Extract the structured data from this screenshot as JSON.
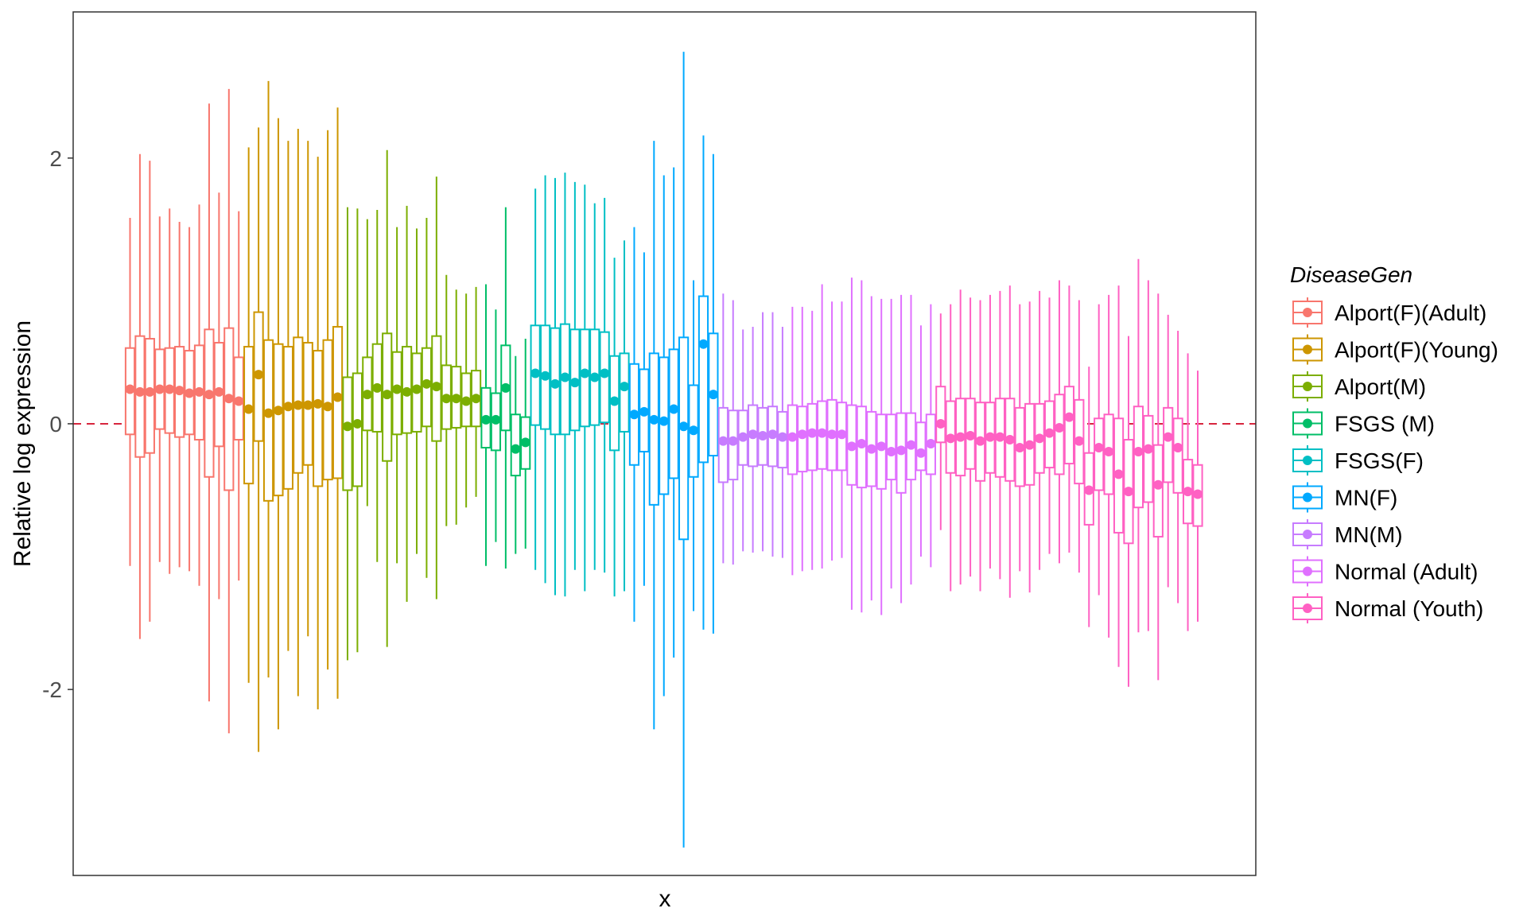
{
  "chart_data": {
    "type": "boxplot",
    "xlabel": "x",
    "ylabel": "Relative log expression",
    "ylim": [
      -3.4,
      3.1
    ],
    "yticks": [
      -2,
      0,
      2
    ],
    "ytick_labels": [
      "-2",
      "0",
      "2"
    ],
    "reference_line": {
      "y": 0,
      "style": "dashed",
      "color": "#d7263d"
    },
    "legend": {
      "title": "DiseaseGen",
      "position": "right"
    },
    "groups": [
      {
        "name": "Alport(F)(Adult)",
        "color": "#F8766D",
        "boxes": [
          [
            -1.07,
            -0.08,
            0.26,
            0.57,
            1.55
          ],
          [
            -1.62,
            -0.25,
            0.24,
            0.66,
            2.03
          ],
          [
            -1.49,
            -0.22,
            0.24,
            0.64,
            1.98
          ],
          [
            -1.04,
            -0.04,
            0.26,
            0.56,
            1.56
          ],
          [
            -1.13,
            -0.07,
            0.26,
            0.57,
            1.62
          ],
          [
            -1.08,
            -0.1,
            0.25,
            0.58,
            1.52
          ],
          [
            -1.11,
            -0.08,
            0.23,
            0.55,
            1.48
          ],
          [
            -1.22,
            -0.12,
            0.24,
            0.59,
            1.65
          ],
          [
            -2.09,
            -0.4,
            0.22,
            0.71,
            2.41
          ],
          [
            -1.32,
            -0.17,
            0.24,
            0.61,
            1.74
          ],
          [
            -2.33,
            -0.5,
            0.19,
            0.72,
            2.52
          ],
          [
            -1.18,
            -0.12,
            0.17,
            0.5,
            1.6
          ]
        ]
      },
      {
        "name": "Alport(F)(Young)",
        "color": "#CD9600",
        "boxes": [
          [
            -1.95,
            -0.45,
            0.11,
            0.58,
            2.08
          ],
          [
            -2.47,
            -0.13,
            0.37,
            0.84,
            2.23
          ],
          [
            -1.91,
            -0.58,
            0.08,
            0.63,
            2.58
          ],
          [
            -2.3,
            -0.54,
            0.1,
            0.6,
            2.3
          ],
          [
            -1.71,
            -0.49,
            0.13,
            0.58,
            2.13
          ],
          [
            -2.05,
            -0.37,
            0.14,
            0.65,
            2.22
          ],
          [
            -1.6,
            -0.31,
            0.14,
            0.61,
            2.13
          ],
          [
            -2.15,
            -0.47,
            0.15,
            0.55,
            2.01
          ],
          [
            -1.85,
            -0.42,
            0.13,
            0.63,
            2.21
          ],
          [
            -2.07,
            -0.41,
            0.2,
            0.73,
            2.38
          ]
        ]
      },
      {
        "name": "Alport(M)",
        "color": "#7CAE00",
        "boxes": [
          [
            -1.78,
            -0.5,
            -0.02,
            0.35,
            1.63
          ],
          [
            -1.72,
            -0.47,
            0.0,
            0.38,
            1.62
          ],
          [
            -0.62,
            -0.05,
            0.22,
            0.5,
            1.54
          ],
          [
            -1.04,
            -0.06,
            0.27,
            0.6,
            1.61
          ],
          [
            -1.68,
            -0.28,
            0.22,
            0.68,
            2.06
          ],
          [
            -1.05,
            -0.08,
            0.26,
            0.54,
            1.48
          ],
          [
            -1.34,
            -0.07,
            0.24,
            0.58,
            1.64
          ],
          [
            -0.98,
            -0.06,
            0.26,
            0.53,
            1.47
          ],
          [
            -1.16,
            -0.02,
            0.3,
            0.57,
            1.55
          ],
          [
            -1.32,
            -0.13,
            0.28,
            0.66,
            1.86
          ],
          [
            -0.77,
            -0.04,
            0.19,
            0.44,
            1.12
          ],
          [
            -0.76,
            -0.03,
            0.19,
            0.43,
            1.01
          ],
          [
            -0.63,
            -0.02,
            0.17,
            0.38,
            0.98
          ],
          [
            -0.55,
            -0.02,
            0.19,
            0.4,
            1.03
          ]
        ]
      },
      {
        "name": "FSGS (M)",
        "color": "#00BE67",
        "boxes": [
          [
            -1.07,
            -0.18,
            0.03,
            0.27,
            1.05
          ],
          [
            -0.89,
            -0.2,
            0.03,
            0.23,
            0.86
          ],
          [
            -1.09,
            -0.05,
            0.27,
            0.59,
            1.63
          ],
          [
            -0.98,
            -0.39,
            -0.19,
            0.07,
            0.51
          ],
          [
            -0.94,
            -0.34,
            -0.14,
            0.05,
            0.64
          ]
        ]
      },
      {
        "name": "FSGS(F)",
        "color": "#00BFC4",
        "boxes": [
          [
            -1.1,
            -0.01,
            0.38,
            0.74,
            1.77
          ],
          [
            -1.2,
            -0.04,
            0.36,
            0.74,
            1.87
          ],
          [
            -1.29,
            -0.08,
            0.3,
            0.72,
            1.85
          ],
          [
            -1.3,
            -0.08,
            0.35,
            0.75,
            1.89
          ],
          [
            -1.1,
            -0.05,
            0.31,
            0.71,
            1.82
          ],
          [
            -1.26,
            -0.02,
            0.38,
            0.71,
            1.8
          ],
          [
            -1.1,
            -0.01,
            0.35,
            0.71,
            1.66
          ],
          [
            -1.12,
            0.01,
            0.38,
            0.69,
            1.7
          ],
          [
            -1.3,
            -0.2,
            0.17,
            0.51,
            1.25
          ],
          [
            -1.26,
            -0.06,
            0.28,
            0.53,
            1.38
          ]
        ]
      },
      {
        "name": "MN(F)",
        "color": "#00A9FF",
        "boxes": [
          [
            -1.49,
            -0.31,
            0.07,
            0.45,
            1.48
          ],
          [
            -1.22,
            -0.21,
            0.09,
            0.41,
            1.29
          ],
          [
            -2.3,
            -0.61,
            0.03,
            0.53,
            2.13
          ],
          [
            -2.05,
            -0.53,
            0.02,
            0.5,
            1.87
          ],
          [
            -1.76,
            -0.41,
            0.11,
            0.56,
            1.93
          ],
          [
            -3.19,
            -0.87,
            -0.02,
            0.65,
            2.8
          ],
          [
            -1.41,
            -0.4,
            -0.05,
            0.29,
            1.08
          ],
          [
            -1.55,
            -0.29,
            0.6,
            0.96,
            2.17
          ],
          [
            -1.58,
            -0.24,
            0.22,
            0.68,
            2.03
          ]
        ]
      },
      {
        "name": "MN(M)",
        "color": "#C77CFF",
        "boxes": [
          [
            -1.05,
            -0.44,
            -0.13,
            0.12,
            0.98
          ],
          [
            -1.06,
            -0.42,
            -0.13,
            0.1,
            0.93
          ],
          [
            -0.96,
            -0.31,
            -0.1,
            0.1,
            0.71
          ],
          [
            -0.97,
            -0.32,
            -0.08,
            0.14,
            0.73
          ],
          [
            -0.96,
            -0.31,
            -0.09,
            0.12,
            0.84
          ],
          [
            -1.0,
            -0.32,
            -0.08,
            0.13,
            0.84
          ],
          [
            -1.01,
            -0.33,
            -0.1,
            0.09,
            0.73
          ]
        ]
      },
      {
        "name": "Normal (Adult)",
        "color": "#E070FF",
        "boxes": [
          [
            -1.14,
            -0.38,
            -0.1,
            0.14,
            0.88
          ],
          [
            -1.11,
            -0.36,
            -0.08,
            0.13,
            0.88
          ],
          [
            -1.1,
            -0.35,
            -0.07,
            0.15,
            0.85
          ],
          [
            -1.09,
            -0.34,
            -0.07,
            0.17,
            1.05
          ],
          [
            -1.03,
            -0.35,
            -0.08,
            0.18,
            0.92
          ],
          [
            -1.01,
            -0.35,
            -0.08,
            0.16,
            0.92
          ],
          [
            -1.4,
            -0.46,
            -0.17,
            0.14,
            1.1
          ],
          [
            -1.42,
            -0.48,
            -0.15,
            0.13,
            1.08
          ],
          [
            -1.33,
            -0.47,
            -0.19,
            0.09,
            0.96
          ],
          [
            -1.44,
            -0.49,
            -0.17,
            0.07,
            0.94
          ],
          [
            -1.24,
            -0.42,
            -0.21,
            0.07,
            0.94
          ],
          [
            -1.35,
            -0.52,
            -0.2,
            0.08,
            0.97
          ],
          [
            -1.21,
            -0.42,
            -0.16,
            0.08,
            0.97
          ],
          [
            -1.0,
            -0.35,
            -0.22,
            0.01,
            0.74
          ],
          [
            -1.08,
            -0.38,
            -0.15,
            0.07,
            0.9
          ]
        ]
      },
      {
        "name": "Normal (Youth)",
        "color": "#FF61C3",
        "boxes": [
          [
            -0.8,
            -0.14,
            0.0,
            0.28,
            0.83
          ],
          [
            -1.26,
            -0.37,
            -0.11,
            0.17,
            0.9
          ],
          [
            -1.21,
            -0.39,
            -0.1,
            0.19,
            1.01
          ],
          [
            -1.15,
            -0.34,
            -0.09,
            0.19,
            0.95
          ],
          [
            -1.26,
            -0.43,
            -0.13,
            0.16,
            0.93
          ],
          [
            -1.09,
            -0.37,
            -0.1,
            0.16,
            0.97
          ],
          [
            -1.17,
            -0.4,
            -0.1,
            0.19,
            1.0
          ],
          [
            -1.31,
            -0.43,
            -0.12,
            0.19,
            1.04
          ],
          [
            -1.11,
            -0.47,
            -0.18,
            0.12,
            0.9
          ],
          [
            -1.27,
            -0.46,
            -0.16,
            0.15,
            0.92
          ],
          [
            -1.1,
            -0.37,
            -0.11,
            0.15,
            1.0
          ],
          [
            -0.98,
            -0.33,
            -0.07,
            0.17,
            0.95
          ],
          [
            -1.05,
            -0.38,
            -0.03,
            0.22,
            1.08
          ],
          [
            -0.97,
            -0.3,
            0.05,
            0.28,
            1.04
          ],
          [
            -1.12,
            -0.45,
            -0.13,
            0.18,
            0.93
          ],
          [
            -1.53,
            -0.76,
            -0.5,
            -0.22,
            0.43
          ],
          [
            -1.29,
            -0.5,
            -0.18,
            0.04,
            0.9
          ],
          [
            -1.61,
            -0.53,
            -0.21,
            0.07,
            0.97
          ],
          [
            -1.83,
            -0.82,
            -0.38,
            0.04,
            1.04
          ],
          [
            -1.98,
            -0.9,
            -0.51,
            -0.12,
            0.66
          ],
          [
            -1.57,
            -0.63,
            -0.21,
            0.13,
            1.24
          ],
          [
            -1.56,
            -0.59,
            -0.19,
            0.06,
            1.08
          ],
          [
            -1.93,
            -0.85,
            -0.46,
            -0.16,
            0.98
          ],
          [
            -1.23,
            -0.44,
            -0.1,
            0.12,
            0.82
          ],
          [
            -1.35,
            -0.52,
            -0.18,
            0.04,
            0.7
          ],
          [
            -1.56,
            -0.75,
            -0.51,
            -0.27,
            0.53
          ],
          [
            -1.49,
            -0.77,
            -0.53,
            -0.31,
            0.4
          ]
        ]
      }
    ]
  }
}
